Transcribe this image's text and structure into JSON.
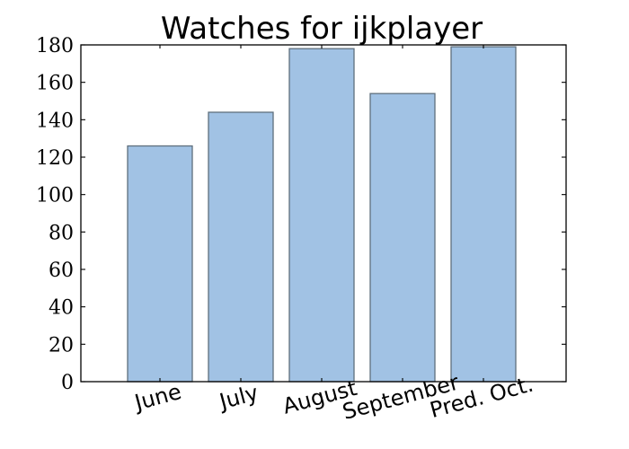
{
  "chart_data": {
    "type": "bar",
    "title": "Watches for ijkplayer",
    "xlabel": "",
    "ylabel": "",
    "categories": [
      "June",
      "July",
      "August",
      "September",
      "Pred. Oct."
    ],
    "values": [
      126,
      144,
      178,
      154,
      179
    ],
    "ylim": [
      0,
      180
    ],
    "yticks": [
      0,
      20,
      40,
      60,
      80,
      100,
      120,
      140,
      160,
      180
    ],
    "grid": false,
    "legend": "none",
    "colors": {
      "bar_fill": "#a1c2e4",
      "bar_edge": "#5f6f7d",
      "axis": "#000000"
    }
  }
}
